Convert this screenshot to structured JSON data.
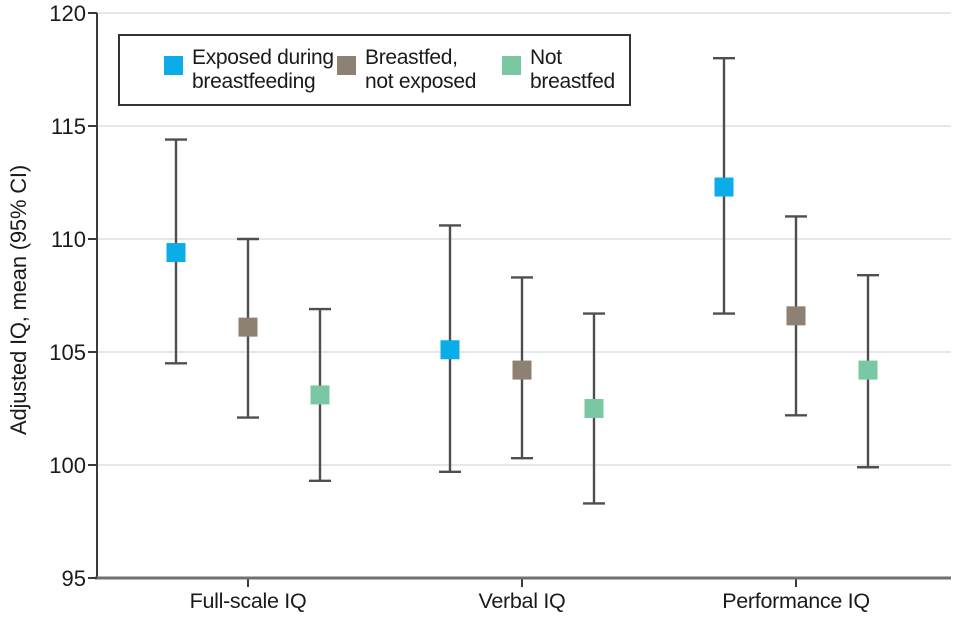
{
  "chart_data": {
    "type": "scatter",
    "subtype": "point-estimates-with-95CI-error-bars",
    "title": "",
    "xlabel": "",
    "ylabel": "Adjusted IQ, mean (95% CI)",
    "ylim": [
      95,
      120
    ],
    "yticks": [
      120,
      115,
      110,
      105,
      100,
      95
    ],
    "grid": "horizontal gridlines at 100, 105, 110, 115, 120",
    "legend_position": "top-left inside plot, boxed",
    "categories": [
      "Full-scale IQ",
      "Verbal IQ",
      "Performance IQ"
    ],
    "series": [
      {
        "name": "Exposed during breastfeeding",
        "legend_label_lines": [
          "Exposed during",
          "breastfeeding"
        ],
        "color": "#0AADE8",
        "means": [
          109.4,
          105.1,
          112.3
        ],
        "ci_low": [
          104.5,
          99.7,
          106.7
        ],
        "ci_high": [
          114.4,
          110.6,
          118.0
        ]
      },
      {
        "name": "Breastfed, not exposed",
        "legend_label_lines": [
          "Breastfed,",
          "not exposed"
        ],
        "color": "#8C8173",
        "means": [
          106.1,
          104.2,
          106.6
        ],
        "ci_low": [
          102.1,
          100.3,
          102.2
        ],
        "ci_high": [
          110.0,
          108.3,
          111.0
        ]
      },
      {
        "name": "Not breastfed",
        "legend_label_lines": [
          "Not",
          "breastfed"
        ],
        "color": "#7AC8A3",
        "means": [
          103.1,
          102.5,
          104.2
        ],
        "ci_low": [
          99.3,
          98.3,
          99.9
        ],
        "ci_high": [
          106.9,
          106.7,
          108.4
        ]
      }
    ],
    "colors": {
      "error_bar": "#4E4E50",
      "gridline": "#E6E8E7",
      "y_axis": "#3A3A3A",
      "x_axis": "#707070",
      "text": "#1A1A1A",
      "legend_border": "#333333",
      "background": "#FFFFFF"
    }
  }
}
